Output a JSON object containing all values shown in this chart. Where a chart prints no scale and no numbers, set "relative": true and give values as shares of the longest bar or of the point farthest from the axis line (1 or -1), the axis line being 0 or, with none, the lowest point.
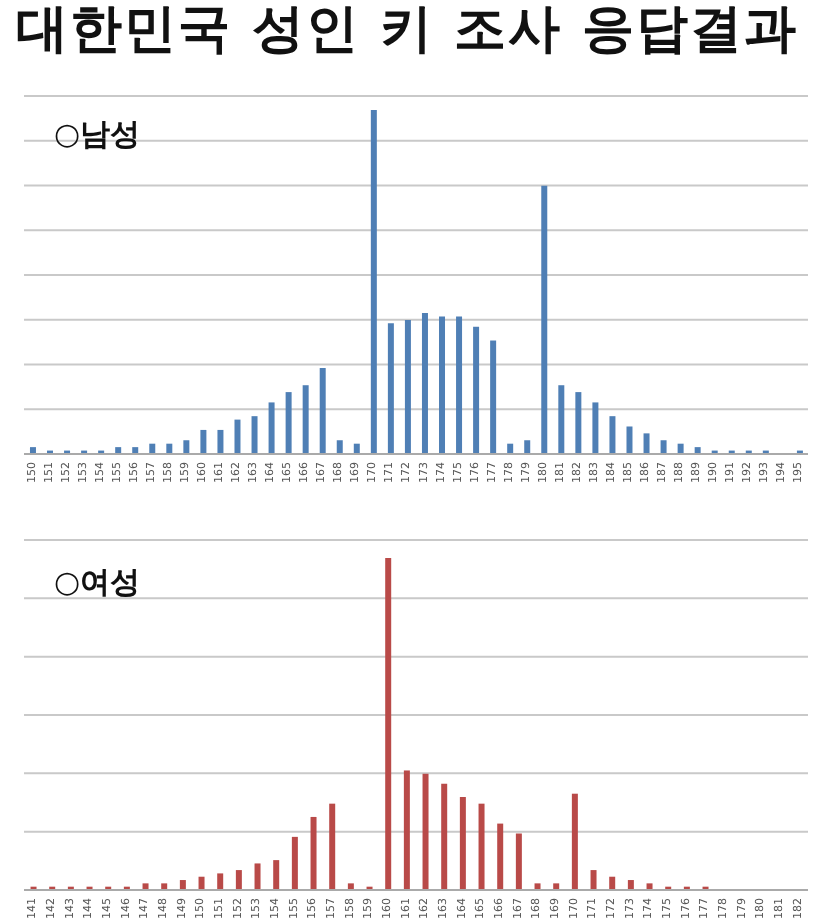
{
  "chart_data": [
    {
      "type": "bar",
      "title": "대한민국 성인 키 조사 응답결과",
      "subtitle": "○남성",
      "relative": true,
      "grid": "y",
      "color": "#4f7fb5",
      "categories": [
        "150",
        "151",
        "152",
        "153",
        "154",
        "155",
        "156",
        "157",
        "158",
        "159",
        "160",
        "161",
        "162",
        "163",
        "164",
        "165",
        "166",
        "167",
        "168",
        "169",
        "170",
        "171",
        "172",
        "173",
        "174",
        "175",
        "176",
        "177",
        "178",
        "179",
        "180",
        "181",
        "182",
        "183",
        "184",
        "185",
        "186",
        "187",
        "188",
        "189",
        "190",
        "191",
        "192",
        "193",
        "194",
        "195"
      ],
      "values": [
        0.02,
        0.01,
        0.01,
        0.01,
        0.01,
        0.02,
        0.02,
        0.03,
        0.03,
        0.04,
        0.07,
        0.07,
        0.1,
        0.11,
        0.15,
        0.18,
        0.2,
        0.25,
        0.04,
        0.03,
        1,
        0.38,
        0.39,
        0.41,
        0.4,
        0.4,
        0.37,
        0.33,
        0.03,
        0.04,
        0.78,
        0.2,
        0.18,
        0.15,
        0.11,
        0.08,
        0.06,
        0.04,
        0.03,
        0.02,
        0.01,
        0.01,
        0.01,
        0.01,
        0,
        0.01
      ]
    },
    {
      "type": "bar",
      "title": "○여성",
      "relative": true,
      "grid": "y",
      "color": "#b94a48",
      "categories": [
        "141",
        "142",
        "143",
        "144",
        "145",
        "146",
        "147",
        "148",
        "149",
        "150",
        "151",
        "152",
        "153",
        "154",
        "155",
        "156",
        "157",
        "158",
        "159",
        "160",
        "161",
        "162",
        "163",
        "164",
        "165",
        "166",
        "167",
        "168",
        "169",
        "170",
        "171",
        "172",
        "173",
        "174",
        "175",
        "176",
        "177",
        "178",
        "179",
        "180",
        "181",
        "182"
      ],
      "values": [
        0.01,
        0.01,
        0.01,
        0.01,
        0.01,
        0.01,
        0.02,
        0.02,
        0.03,
        0.04,
        0.05,
        0.06,
        0.08,
        0.09,
        0.16,
        0.22,
        0.26,
        0.02,
        0.01,
        1,
        0.36,
        0.35,
        0.32,
        0.28,
        0.26,
        0.2,
        0.17,
        0.02,
        0.02,
        0.29,
        0.06,
        0.04,
        0.03,
        0.02,
        0.01,
        0.01,
        0.01,
        0,
        0,
        0,
        0,
        0
      ]
    }
  ]
}
